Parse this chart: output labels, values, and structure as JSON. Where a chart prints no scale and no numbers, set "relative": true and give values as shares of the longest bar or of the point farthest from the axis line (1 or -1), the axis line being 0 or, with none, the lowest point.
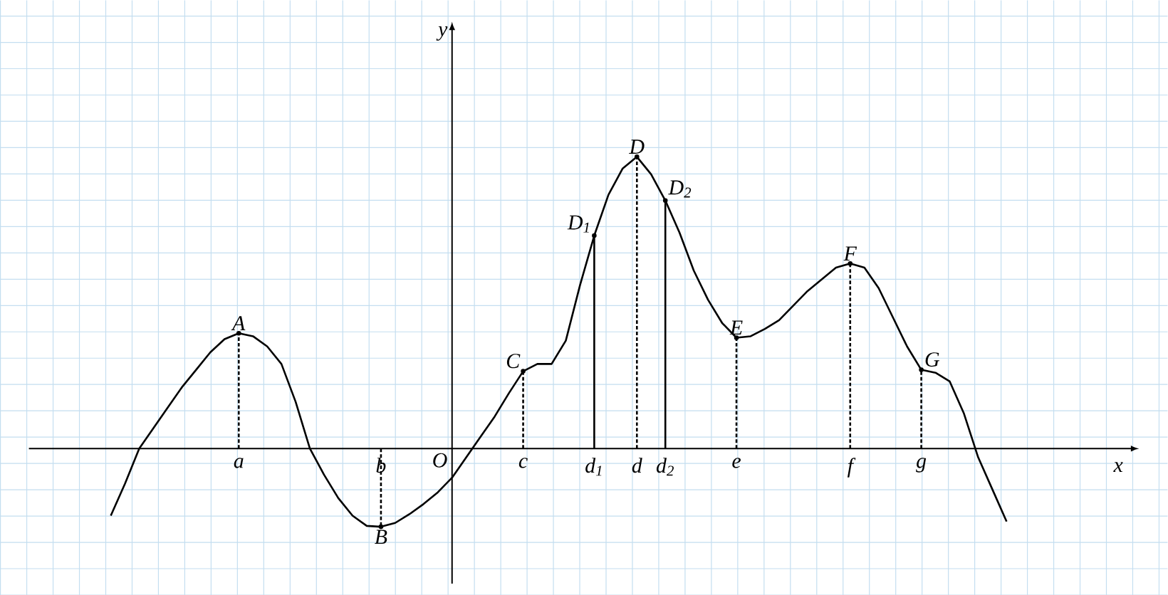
{
  "chart_data": {
    "type": "line",
    "relative": true,
    "xlabel": "x",
    "grid": true,
    "marker": "none",
    "categories": [
      null,
      null,
      null,
      null,
      null,
      null,
      null,
      null,
      null,
      "a",
      null,
      null,
      null,
      null,
      null,
      null,
      null,
      null,
      null,
      "b",
      null,
      null,
      null,
      null,
      null,
      null,
      null,
      null,
      null,
      "c",
      null,
      null,
      null,
      null,
      "d$_{1}$",
      null,
      null,
      "d",
      null,
      "d$_{2}$",
      null,
      null,
      null,
      null,
      "e",
      null,
      null,
      null,
      null,
      null,
      null,
      null,
      "f",
      null,
      null,
      null,
      null,
      "g",
      null,
      null,
      null,
      null,
      null,
      null
    ],
    "series": [
      {
        "color": "#000000",
        "line_style": "solid",
        "values": [
          -0.23,
          -0.12,
          0,
          0.07,
          0.14,
          0.21,
          0.27,
          0.33,
          0.375,
          0.395,
          0.385,
          0.35,
          0.29,
          0.16,
          0,
          -0.09,
          -0.17,
          -0.23,
          -0.265,
          -0.268,
          -0.255,
          -0.225,
          -0.19,
          -0.15,
          -0.1,
          -0.03,
          0.04,
          0.11,
          0.19,
          0.265,
          0.29,
          0.29,
          0.37,
          0.56,
          0.73,
          0.87,
          0.96,
          1,
          0.94,
          0.85,
          0.74,
          0.61,
          0.51,
          0.43,
          0.38,
          0.385,
          0.41,
          0.44,
          0.49,
          0.54,
          0.58,
          0.62,
          0.634,
          0.62,
          0.55,
          0.45,
          0.35,
          0.27,
          0.26,
          0.23,
          0.12,
          -0.03,
          -0.14,
          -0.25
        ]
      },
      {
        "type": "lollipop",
        "marker": "circle",
        "color": "#000000",
        "line_style": "dashed",
        "values": [
          null,
          null,
          null,
          null,
          null,
          null,
          null,
          null,
          null,
          0.395,
          null,
          null,
          null,
          null,
          null,
          null,
          null,
          null,
          null,
          -0.268,
          null,
          null,
          null,
          null,
          null,
          null,
          null,
          null,
          null,
          0.265,
          null,
          null,
          null,
          null,
          null,
          null,
          null,
          1,
          null,
          null,
          null,
          null,
          null,
          null,
          0.38,
          null,
          null,
          null,
          null,
          null,
          null,
          null,
          0.634,
          null,
          null,
          null,
          null,
          0.27,
          null,
          null,
          null,
          null,
          null,
          null
        ]
      },
      {
        "type": "lollipop",
        "marker": "circle",
        "color": "#000000",
        "line_style": "solid",
        "values": [
          null,
          null,
          null,
          null,
          null,
          null,
          null,
          null,
          null,
          null,
          null,
          null,
          null,
          null,
          null,
          null,
          null,
          null,
          null,
          null,
          null,
          null,
          null,
          null,
          null,
          null,
          null,
          null,
          null,
          null,
          null,
          null,
          null,
          null,
          0.73,
          null,
          null,
          null,
          null,
          0.85,
          null,
          null,
          null,
          null,
          null,
          null,
          null,
          null,
          null,
          null,
          null,
          null,
          null,
          null,
          null,
          null,
          null,
          null,
          null,
          null,
          null,
          null,
          null,
          null
        ]
      }
    ],
    "annotations": [
      {
        "text": "A",
        "x": "a",
        "y": 0.395
      },
      {
        "text": "B",
        "x": "b",
        "y": -0.268
      },
      {
        "text": "C",
        "x": "c",
        "y": 0.265
      },
      {
        "text": "D$_{1}$",
        "x": "d$_{1}$",
        "y": 0.73
      },
      {
        "text": "D",
        "x": "d",
        "y": 1
      },
      {
        "text": "D$_{2}$",
        "x": "d$_{2}$",
        "y": 0.85
      },
      {
        "text": "E",
        "x": "e",
        "y": 0.38
      },
      {
        "text": "F",
        "x": "f",
        "y": 0.634
      },
      {
        "text": "G",
        "x": "g",
        "y": 0.27
      },
      "O",
      "y"
    ]
  }
}
